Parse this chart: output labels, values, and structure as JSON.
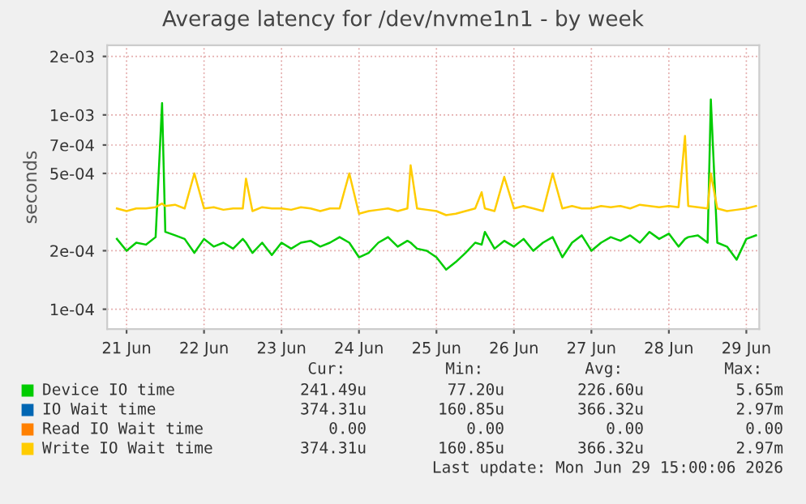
{
  "chart_data": {
    "type": "line",
    "title": "Average latency for /dev/nvme1n1 - by week",
    "ylabel": "seconds",
    "x": [
      "2026-06-20T21:00",
      "2026-06-21T00:00",
      "2026-06-21T03:00",
      "2026-06-21T06:00",
      "2026-06-21T09:00",
      "2026-06-21T11:00",
      "2026-06-21T12:00",
      "2026-06-21T15:00",
      "2026-06-21T18:00",
      "2026-06-21T21:00",
      "2026-06-22T00:00",
      "2026-06-22T03:00",
      "2026-06-22T06:00",
      "2026-06-22T09:00",
      "2026-06-22T12:00",
      "2026-06-22T13:00",
      "2026-06-22T15:00",
      "2026-06-22T18:00",
      "2026-06-22T21:00",
      "2026-06-23T00:00",
      "2026-06-23T03:00",
      "2026-06-23T06:00",
      "2026-06-23T09:00",
      "2026-06-23T12:00",
      "2026-06-23T15:00",
      "2026-06-23T18:00",
      "2026-06-23T21:00",
      "2026-06-24T00:00",
      "2026-06-24T03:00",
      "2026-06-24T06:00",
      "2026-06-24T09:00",
      "2026-06-24T12:00",
      "2026-06-24T15:00",
      "2026-06-24T16:00",
      "2026-06-24T18:00",
      "2026-06-24T21:00",
      "2026-06-25T00:00",
      "2026-06-25T03:00",
      "2026-06-25T06:00",
      "2026-06-25T09:00",
      "2026-06-25T12:00",
      "2026-06-25T14:00",
      "2026-06-25T15:00",
      "2026-06-25T18:00",
      "2026-06-25T21:00",
      "2026-06-26T00:00",
      "2026-06-26T03:00",
      "2026-06-26T06:00",
      "2026-06-26T09:00",
      "2026-06-26T12:00",
      "2026-06-26T15:00",
      "2026-06-26T18:00",
      "2026-06-26T21:00",
      "2026-06-27T00:00",
      "2026-06-27T03:00",
      "2026-06-27T06:00",
      "2026-06-27T09:00",
      "2026-06-27T12:00",
      "2026-06-27T15:00",
      "2026-06-27T18:00",
      "2026-06-27T21:00",
      "2026-06-28T00:00",
      "2026-06-28T03:00",
      "2026-06-28T05:00",
      "2026-06-28T06:00",
      "2026-06-28T09:00",
      "2026-06-28T12:00",
      "2026-06-28T13:00",
      "2026-06-28T15:00",
      "2026-06-28T18:00",
      "2026-06-28T21:00",
      "2026-06-29T00:00",
      "2026-06-29T03:00"
    ],
    "series": [
      {
        "name": "Device IO time",
        "color": "#00cc00",
        "values": [
          0.00023,
          0.0002,
          0.00022,
          0.000215,
          0.000235,
          0.00115,
          0.00025,
          0.00024,
          0.00023,
          0.000195,
          0.00023,
          0.00021,
          0.00022,
          0.000205,
          0.00023,
          0.00022,
          0.000195,
          0.00022,
          0.00019,
          0.00022,
          0.000205,
          0.00022,
          0.000225,
          0.00021,
          0.00022,
          0.000235,
          0.00022,
          0.000185,
          0.000195,
          0.00022,
          0.000235,
          0.00021,
          0.000225,
          0.00022,
          0.000205,
          0.0002,
          0.000185,
          0.00016,
          0.000175,
          0.000195,
          0.00022,
          0.000215,
          0.00025,
          0.000205,
          0.000225,
          0.00021,
          0.00023,
          0.0002,
          0.00022,
          0.000235,
          0.000185,
          0.00022,
          0.00024,
          0.0002,
          0.00022,
          0.000235,
          0.000225,
          0.00024,
          0.00022,
          0.00025,
          0.00023,
          0.000245,
          0.00021,
          0.00023,
          0.000235,
          0.00024,
          0.00022,
          0.0012,
          0.00022,
          0.00021,
          0.00018,
          0.00023,
          0.00024
        ]
      },
      {
        "name": "IO Wait time",
        "color": "#0066b3",
        "values": [
          null,
          null,
          null,
          null,
          null,
          null,
          null,
          null,
          null,
          null,
          null,
          null,
          null,
          null,
          null,
          null,
          null,
          null,
          null,
          null,
          null,
          null,
          null,
          null,
          null,
          null,
          null,
          null,
          null,
          null,
          null,
          null,
          null,
          null,
          null,
          null,
          null,
          null,
          null,
          null,
          null,
          null,
          null,
          null,
          null,
          null,
          null,
          null,
          null,
          null,
          null,
          null,
          null,
          null,
          null,
          null,
          null,
          null,
          null,
          null,
          null,
          null,
          null,
          null,
          null,
          null,
          null,
          null,
          null,
          null,
          null,
          null,
          null
        ]
      },
      {
        "name": "Read IO Wait time",
        "color": "#ff8000",
        "values": [
          null,
          null,
          null,
          null,
          null,
          null,
          null,
          null,
          null,
          null,
          null,
          null,
          null,
          null,
          null,
          null,
          null,
          null,
          null,
          null,
          null,
          null,
          null,
          null,
          null,
          null,
          null,
          null,
          null,
          null,
          null,
          null,
          null,
          null,
          null,
          null,
          null,
          null,
          null,
          null,
          null,
          null,
          null,
          null,
          null,
          null,
          null,
          null,
          null,
          null,
          null,
          null,
          null,
          null,
          null,
          null,
          null,
          null,
          null,
          null,
          null,
          null,
          null,
          null,
          null,
          null,
          null,
          null,
          null,
          null,
          null,
          null,
          null
        ]
      },
      {
        "name": "Write IO Wait time",
        "color": "#ffcc00",
        "values": [
          0.00033,
          0.00032,
          0.00033,
          0.00033,
          0.000335,
          0.00035,
          0.00034,
          0.000345,
          0.00033,
          0.0005,
          0.00033,
          0.000335,
          0.000325,
          0.00033,
          0.00033,
          0.00047,
          0.00032,
          0.000335,
          0.00033,
          0.00033,
          0.000325,
          0.000335,
          0.00033,
          0.00032,
          0.00033,
          0.00033,
          0.0005,
          0.00031,
          0.00032,
          0.000325,
          0.00033,
          0.00032,
          0.00033,
          0.00055,
          0.00033,
          0.000325,
          0.00032,
          0.000305,
          0.00031,
          0.00032,
          0.00033,
          0.0004,
          0.00033,
          0.00032,
          0.00048,
          0.00033,
          0.00034,
          0.00033,
          0.00032,
          0.0005,
          0.00033,
          0.00034,
          0.00033,
          0.00033,
          0.00034,
          0.000335,
          0.00034,
          0.00033,
          0.000345,
          0.00034,
          0.000335,
          0.00034,
          0.000335,
          0.00078,
          0.00034,
          0.000335,
          0.00033,
          0.0005,
          0.00033,
          0.00032,
          0.000325,
          0.00033,
          0.00034
        ]
      }
    ],
    "log": "y",
    "ylim": [
      7.9e-05,
      0.00228
    ],
    "yticks": [
      {
        "value": 0.0001,
        "label": "1e-04"
      },
      {
        "value": 0.0002,
        "label": "2e-04"
      },
      {
        "value": 0.0005,
        "label": "5e-04"
      },
      {
        "value": 0.0007,
        "label": "7e-04"
      },
      {
        "value": 0.001,
        "label": "1e-03"
      },
      {
        "value": 0.002,
        "label": "2e-03"
      }
    ],
    "xlim": [
      "2026-06-20T18:00",
      "2026-06-29T04:00"
    ],
    "xticks": [
      {
        "value": "2026-06-21",
        "label": "21 Jun"
      },
      {
        "value": "2026-06-22",
        "label": "22 Jun"
      },
      {
        "value": "2026-06-23",
        "label": "23 Jun"
      },
      {
        "value": "2026-06-24",
        "label": "24 Jun"
      },
      {
        "value": "2026-06-25",
        "label": "25 Jun"
      },
      {
        "value": "2026-06-26",
        "label": "26 Jun"
      },
      {
        "value": "2026-06-27",
        "label": "27 Jun"
      },
      {
        "value": "2026-06-28",
        "label": "28 Jun"
      },
      {
        "value": "2026-06-29",
        "label": "29 Jun"
      }
    ],
    "grid": true,
    "legend": "bottom",
    "annotations": [
      "Cur:",
      "Min:",
      "Avg:",
      "Max:",
      "241.49u",
      "77.20u",
      "226.60u",
      "5.65m",
      "374.31u",
      "160.85u",
      "366.32u",
      "2.97m",
      "0.00",
      "0.00",
      "0.00",
      "0.00",
      "374.31u",
      "160.85u",
      "366.32u",
      "2.97m",
      "Last update: Mon Jun 29 15:00:06 2026"
    ]
  }
}
